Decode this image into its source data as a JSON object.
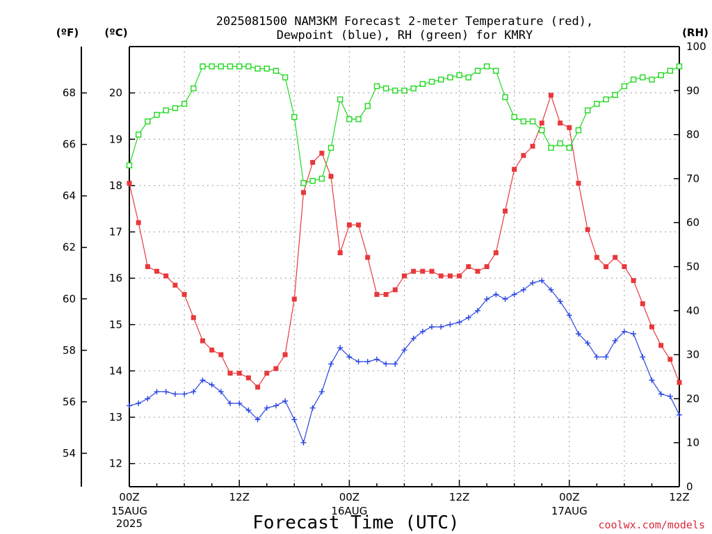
{
  "chart_data": {
    "type": "line",
    "title_line1": "2025081500 NAM3KM Forecast 2-meter Temperature (red),",
    "title_line2": "Dewpoint (blue), RH (green) for KMRY",
    "xlabel": "Forecast Time (UTC)",
    "credit": "coolwx.com/models",
    "unit_f": "(ºF)",
    "unit_c": "(ºC)",
    "unit_rh": "(RH)",
    "hours": [
      0,
      1,
      2,
      3,
      4,
      5,
      6,
      7,
      8,
      9,
      10,
      11,
      12,
      13,
      14,
      15,
      16,
      17,
      18,
      19,
      20,
      21,
      22,
      23,
      24,
      25,
      26,
      27,
      28,
      29,
      30,
      31,
      32,
      33,
      34,
      35,
      36,
      37,
      38,
      39,
      40,
      41,
      42,
      43,
      44,
      45,
      46,
      47,
      48,
      49,
      50,
      51,
      52,
      53,
      54,
      55,
      56,
      57,
      58,
      59,
      60
    ],
    "x_ticks": [
      {
        "h": 0,
        "l1": "00Z",
        "l2": "15AUG",
        "l3": "2025"
      },
      {
        "h": 12,
        "l1": "12Z",
        "l2": "",
        "l3": ""
      },
      {
        "h": 24,
        "l1": "00Z",
        "l2": "16AUG",
        "l3": ""
      },
      {
        "h": 36,
        "l1": "12Z",
        "l2": "",
        "l3": ""
      },
      {
        "h": 48,
        "l1": "00Z",
        "l2": "17AUG",
        "l3": ""
      },
      {
        "h": 60,
        "l1": "12Z",
        "l2": "",
        "l3": ""
      }
    ],
    "ylim_c": [
      11.5,
      21
    ],
    "c_ticks": [
      "12",
      "13",
      "14",
      "15",
      "16",
      "17",
      "18",
      "19",
      "20"
    ],
    "f_ticks": [
      "54",
      "56",
      "58",
      "60",
      "62",
      "64",
      "66",
      "68"
    ],
    "ylim_rh": [
      0,
      100
    ],
    "rh_ticks": [
      "0",
      "10",
      "20",
      "30",
      "40",
      "50",
      "60",
      "70",
      "80",
      "90",
      "100"
    ],
    "series": [
      {
        "name": "Temperature",
        "color": "#e8383b",
        "marker": "square-filled",
        "values": [
          18.05,
          17.2,
          16.25,
          16.15,
          16.05,
          15.85,
          15.65,
          15.15,
          14.65,
          14.45,
          14.35,
          13.95,
          13.95,
          13.85,
          13.65,
          13.95,
          14.05,
          14.35,
          15.55,
          17.85,
          18.5,
          18.7,
          18.2,
          16.55,
          17.15,
          17.15,
          16.45,
          15.65,
          15.65,
          15.75,
          16.05,
          16.15,
          16.15,
          16.15,
          16.05,
          16.05,
          16.05,
          16.25,
          16.15,
          16.25,
          16.55,
          17.45,
          18.35,
          18.65,
          18.85,
          19.35,
          19.95,
          19.35,
          19.25,
          18.05,
          17.05,
          16.45,
          16.25,
          16.45,
          16.25,
          15.95,
          15.45,
          14.95,
          14.55,
          14.25,
          13.75
        ]
      },
      {
        "name": "Dewpoint",
        "color": "#2945e0",
        "marker": "plus",
        "values": [
          13.25,
          13.3,
          13.4,
          13.55,
          13.55,
          13.5,
          13.5,
          13.55,
          13.8,
          13.7,
          13.55,
          13.3,
          13.3,
          13.15,
          12.95,
          13.2,
          13.25,
          13.35,
          12.95,
          12.45,
          13.2,
          13.55,
          14.15,
          14.5,
          14.3,
          14.2,
          14.2,
          14.25,
          14.15,
          14.15,
          14.45,
          14.7,
          14.85,
          14.95,
          14.95,
          15.0,
          15.05,
          15.15,
          15.3,
          15.55,
          15.65,
          15.55,
          15.65,
          15.75,
          15.9,
          15.95,
          15.75,
          15.5,
          15.2,
          14.8,
          14.6,
          14.3,
          14.3,
          14.65,
          14.85,
          14.8,
          14.3,
          13.8,
          13.5,
          13.45,
          13.05
        ]
      },
      {
        "name": "RH",
        "color": "#1fd81f",
        "marker": "square-open",
        "values": [
          73,
          80,
          83,
          84.5,
          85.5,
          86,
          87,
          90.5,
          95.5,
          95.5,
          95.5,
          95.5,
          95.5,
          95.5,
          95,
          95,
          94.5,
          93,
          84,
          69,
          69.5,
          70,
          77,
          88,
          83.5,
          83.5,
          86.5,
          91,
          90.5,
          90,
          90,
          90.5,
          91.5,
          92,
          92.5,
          93,
          93.5,
          93,
          94.5,
          95.5,
          94.5,
          88.5,
          84,
          83,
          83,
          81,
          77,
          78,
          77,
          81,
          85.5,
          87,
          88,
          89,
          91,
          92.5,
          93,
          92.5,
          93.5,
          94.5,
          95.5
        ]
      }
    ]
  }
}
